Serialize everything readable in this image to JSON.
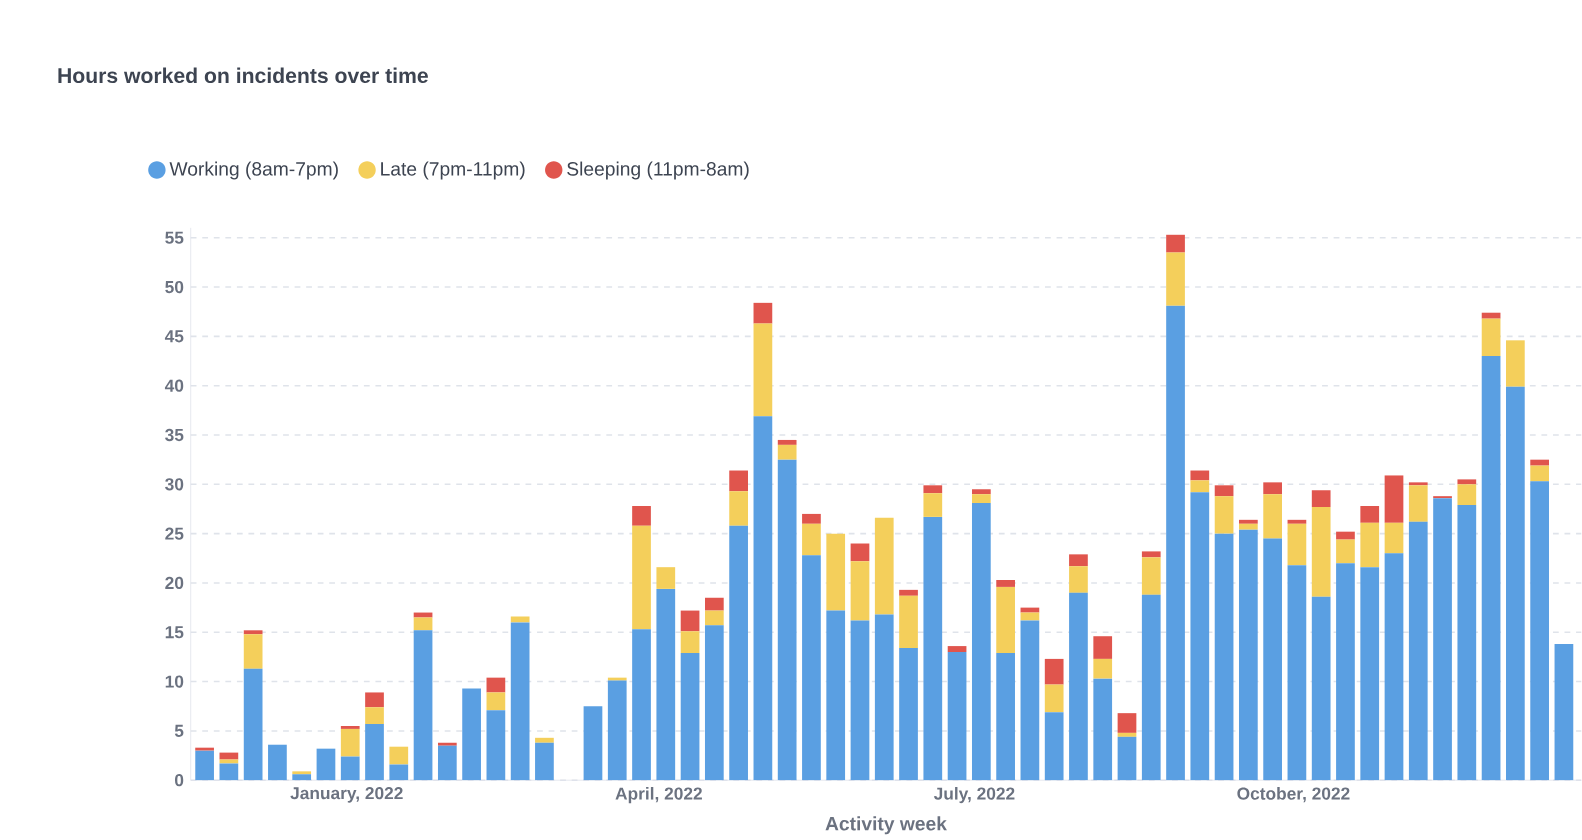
{
  "chart_data": {
    "type": "bar",
    "stacked": true,
    "title": "Hours worked on incidents over time",
    "xlabel": "Activity week",
    "x": [
      "2021-11-21",
      "2021-11-28",
      "2021-12-05",
      "2021-12-12",
      "2021-12-19",
      "2021-12-26",
      "2022-01-02",
      "2022-01-09",
      "2022-01-16",
      "2022-01-23",
      "2022-01-30",
      "2022-02-06",
      "2022-02-13",
      "2022-02-20",
      "2022-02-27",
      "2022-03-13",
      "2022-03-20",
      "2022-03-27",
      "2022-04-03",
      "2022-04-10",
      "2022-04-17",
      "2022-04-24",
      "2022-05-01",
      "2022-05-08",
      "2022-05-15",
      "2022-05-22",
      "2022-05-29",
      "2022-06-05",
      "2022-06-12",
      "2022-06-19",
      "2022-06-26",
      "2022-07-03",
      "2022-07-10",
      "2022-07-17",
      "2022-07-24",
      "2022-07-31",
      "2022-08-07",
      "2022-08-14",
      "2022-08-21",
      "2022-08-28",
      "2022-09-04",
      "2022-09-11",
      "2022-09-18",
      "2022-09-25",
      "2022-10-02",
      "2022-10-09",
      "2022-10-16",
      "2022-10-23",
      "2022-10-30",
      "2022-11-06",
      "2022-11-13",
      "2022-11-20",
      "2022-11-27",
      "2022-12-04",
      "2022-12-11",
      "2022-12-18"
    ],
    "series": [
      {
        "name": "Working (8am-7pm)",
        "color": "#5a9fe2",
        "values": [
          3.0,
          1.7,
          11.3,
          3.6,
          0.6,
          3.2,
          2.4,
          5.7,
          1.6,
          15.2,
          3.5,
          9.3,
          7.1,
          16.0,
          3.8,
          7.5,
          10.1,
          15.3,
          19.4,
          12.9,
          15.7,
          25.8,
          36.9,
          32.5,
          22.8,
          17.2,
          16.2,
          16.8,
          13.4,
          26.7,
          13.0,
          28.1,
          12.9,
          16.2,
          6.9,
          19.0,
          10.3,
          4.4,
          18.8,
          48.1,
          29.2,
          25.0,
          25.4,
          24.5,
          21.8,
          18.6,
          22.0,
          21.6,
          23.0,
          26.2,
          28.6,
          27.9,
          43.0,
          39.9,
          30.3,
          13.8
        ]
      },
      {
        "name": "Late (7pm-11pm)",
        "color": "#f4cf5b",
        "values": [
          0,
          0.4,
          3.5,
          0,
          0.3,
          0,
          2.8,
          1.7,
          1.8,
          1.3,
          0,
          0,
          1.8,
          0.6,
          0.5,
          0,
          0.3,
          10.5,
          2.2,
          2.2,
          1.5,
          3.5,
          9.4,
          1.5,
          3.2,
          7.8,
          6.0,
          9.8,
          5.3,
          2.4,
          0,
          0.9,
          6.7,
          0.8,
          2.8,
          2.7,
          2.0,
          0.4,
          3.8,
          5.4,
          1.2,
          3.8,
          0.6,
          4.5,
          4.2,
          9.1,
          2.4,
          4.5,
          3.1,
          3.7,
          0,
          2.1,
          3.8,
          4.7,
          1.6,
          0
        ]
      },
      {
        "name": "Sleeping (11pm-8am)",
        "color": "#e0554d",
        "values": [
          0.3,
          0.7,
          0.4,
          0,
          0,
          0,
          0.3,
          1.5,
          0,
          0.5,
          0.3,
          0,
          1.5,
          0,
          0,
          0,
          0,
          2.0,
          0,
          2.1,
          1.3,
          2.1,
          2.1,
          0.5,
          1.0,
          0,
          1.8,
          0,
          0.6,
          0.8,
          0.6,
          0.5,
          0.7,
          0.5,
          2.6,
          1.2,
          2.3,
          2.0,
          0.6,
          1.8,
          1.0,
          1.1,
          0.4,
          1.2,
          0.4,
          1.7,
          0.8,
          1.7,
          4.8,
          0.3,
          0.2,
          0.5,
          0.6,
          0,
          0.6,
          0
        ]
      }
    ],
    "xlim": [
      "2021-11-17",
      "2022-12-23"
    ],
    "xticks": [
      {
        "value": "2022-01-01",
        "label": "January, 2022"
      },
      {
        "value": "2022-04-01",
        "label": "April, 2022"
      },
      {
        "value": "2022-07-01",
        "label": "July, 2022"
      },
      {
        "value": "2022-10-01",
        "label": "October, 2022"
      }
    ],
    "ylim": [
      0,
      56
    ],
    "yticks": [
      0,
      5,
      10,
      15,
      20,
      25,
      30,
      35,
      40,
      45,
      50,
      55
    ],
    "grid": "y",
    "legend": "top left"
  }
}
